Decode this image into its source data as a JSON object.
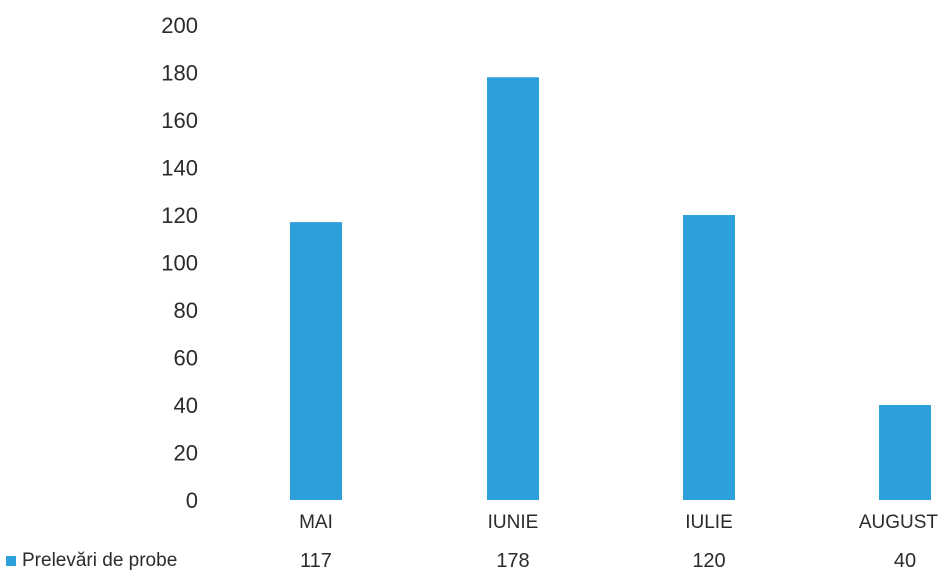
{
  "chart_data": {
    "type": "bar",
    "categories": [
      "MAI",
      "IUNIE",
      "IULIE",
      "AUGUST"
    ],
    "series": [
      {
        "name": "Prelevări de probe",
        "values": [
          117,
          178,
          120,
          40
        ],
        "color": "#2d9fdb"
      }
    ],
    "yticks": [
      "0",
      "20",
      "40",
      "60",
      "80",
      "100",
      "120",
      "140",
      "160",
      "180",
      "200"
    ],
    "ylim": [
      0,
      200
    ],
    "table_values": [
      "117",
      "178",
      "120",
      "40"
    ],
    "grid": false,
    "legend_placement": "bottom-left data table"
  }
}
